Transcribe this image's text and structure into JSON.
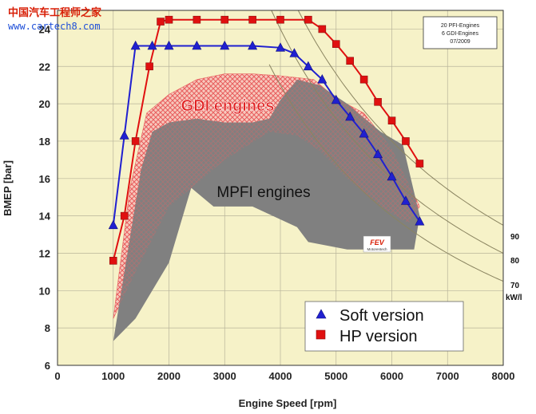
{
  "watermark": {
    "chinese": "中国汽车工程师之家",
    "url": "www.cartech8.com"
  },
  "info_box": {
    "lines": [
      "20 PFI-Engines",
      "6 GDI-Engines",
      "07/2009"
    ]
  },
  "fev_logo": {
    "name": "FEV",
    "sub": "Motorentech"
  },
  "chart_data": {
    "type": "line",
    "xlabel": "Engine Speed  [rpm]",
    "ylabel": "BMEP [bar]",
    "xlim": [
      0,
      8000
    ],
    "ylim": [
      6,
      25
    ],
    "x_ticks": [
      0,
      1000,
      2000,
      3000,
      4000,
      5000,
      6000,
      7000,
      8000
    ],
    "y_ticks": [
      6,
      8,
      10,
      12,
      14,
      16,
      18,
      20,
      22,
      24
    ],
    "grid": true,
    "regions": [
      {
        "label": "GDI engines",
        "color": "#e02020",
        "polygon": [
          [
            1000,
            8.5
          ],
          [
            1300,
            15.5
          ],
          [
            1600,
            19.5
          ],
          [
            2000,
            20.5
          ],
          [
            2500,
            21.3
          ],
          [
            3000,
            21.6
          ],
          [
            3500,
            21.6
          ],
          [
            4000,
            21.5
          ],
          [
            4600,
            21.3
          ],
          [
            5000,
            20.3
          ],
          [
            5500,
            19.5
          ],
          [
            6000,
            17.6
          ],
          [
            6500,
            14.5
          ],
          [
            6300,
            13.6
          ],
          [
            5800,
            14.5
          ],
          [
            5200,
            16.0
          ],
          [
            4700,
            17.5
          ],
          [
            4300,
            18.3
          ],
          [
            3800,
            18.5
          ],
          [
            3000,
            17.0
          ],
          [
            2000,
            14.5
          ],
          [
            1400,
            11.0
          ],
          [
            1000,
            8.5
          ]
        ]
      },
      {
        "label": "MPFI engines",
        "color": "#808080",
        "polygon": [
          [
            1000,
            7.3
          ],
          [
            1200,
            11.0
          ],
          [
            1500,
            16.5
          ],
          [
            1700,
            18.5
          ],
          [
            2000,
            19.0
          ],
          [
            2500,
            19.2
          ],
          [
            3000,
            19.0
          ],
          [
            3500,
            19.0
          ],
          [
            3800,
            19.2
          ],
          [
            4000,
            20.2
          ],
          [
            4300,
            21.3
          ],
          [
            4700,
            21.0
          ],
          [
            5200,
            20.0
          ],
          [
            5800,
            18.5
          ],
          [
            6200,
            17.8
          ],
          [
            6500,
            14.0
          ],
          [
            6400,
            12.2
          ],
          [
            5200,
            12.2
          ],
          [
            4500,
            12.6
          ],
          [
            4300,
            13.4
          ],
          [
            3500,
            14.5
          ],
          [
            2800,
            14.5
          ],
          [
            2400,
            15.5
          ],
          [
            2000,
            11.5
          ],
          [
            1700,
            10.0
          ],
          [
            1400,
            8.5
          ],
          [
            1000,
            7.3
          ]
        ]
      }
    ],
    "power_curves": [
      {
        "label": "90",
        "power_kW_per_l": 90
      },
      {
        "label": "80",
        "power_kW_per_l": 80
      },
      {
        "label": "70",
        "power_kW_per_l": 70
      }
    ],
    "power_unit": "kW/l",
    "series": [
      {
        "name": "Soft version",
        "color": "#2020d0",
        "marker": "triangle",
        "x": [
          1000,
          1200,
          1400,
          1700,
          2000,
          2500,
          3000,
          3500,
          4000,
          4250,
          4500,
          4750,
          5000,
          5250,
          5500,
          5750,
          6000,
          6250,
          6500
        ],
        "y": [
          13.5,
          18.3,
          23.1,
          23.1,
          23.1,
          23.1,
          23.1,
          23.1,
          23.0,
          22.7,
          22.0,
          21.3,
          20.2,
          19.3,
          18.4,
          17.3,
          16.1,
          14.8,
          13.7
        ]
      },
      {
        "name": "HP version",
        "color": "#e01010",
        "marker": "square",
        "x": [
          1000,
          1200,
          1400,
          1650,
          1850,
          2000,
          2500,
          3000,
          3500,
          4000,
          4500,
          4750,
          5000,
          5250,
          5500,
          5750,
          6000,
          6250,
          6500
        ],
        "y": [
          11.6,
          14.0,
          18.0,
          22.0,
          24.4,
          24.5,
          24.5,
          24.5,
          24.5,
          24.5,
          24.5,
          24.0,
          23.2,
          22.3,
          21.3,
          20.1,
          19.1,
          18.0,
          16.8
        ]
      }
    ]
  }
}
